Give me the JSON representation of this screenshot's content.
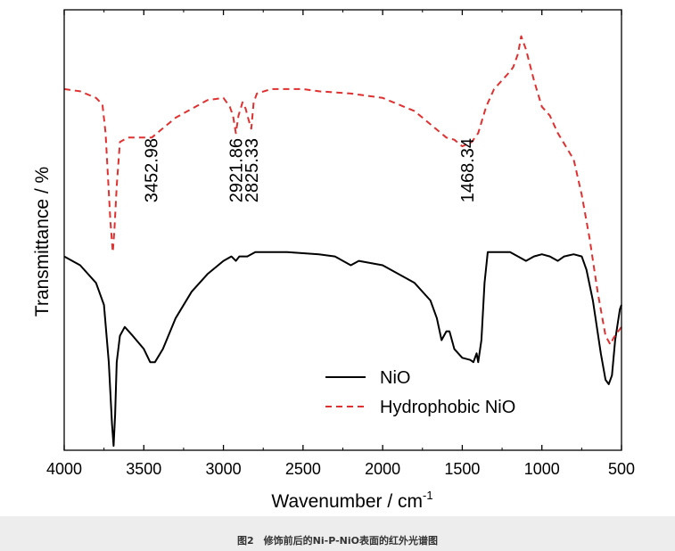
{
  "chart_data": {
    "type": "line",
    "title": "",
    "xlabel": "Wavenumber  / cm",
    "xlabel_superscript": "-1",
    "ylabel": "Transmittance / %",
    "xlim": [
      4000,
      500
    ],
    "x_reversed": true,
    "ylim": [
      0,
      100
    ],
    "yticks_visible": false,
    "grid": false,
    "legend_position": "bottom-right",
    "xticks": [
      {
        "value": 4000,
        "label": "4000"
      },
      {
        "value": 3500,
        "label": "3500"
      },
      {
        "value": 3000,
        "label": "3000"
      },
      {
        "value": 2500,
        "label": "2500"
      },
      {
        "value": 2000,
        "label": "2000"
      },
      {
        "value": 1500,
        "label": "1500"
      },
      {
        "value": 1000,
        "label": "1000"
      },
      {
        "value": 500,
        "label": "500"
      }
    ],
    "series": [
      {
        "name": "NiO",
        "color": "#000000",
        "style": "solid",
        "points": [
          [
            4000,
            44
          ],
          [
            3900,
            42
          ],
          [
            3800,
            38
          ],
          [
            3750,
            33
          ],
          [
            3720,
            20
          ],
          [
            3700,
            6
          ],
          [
            3690,
            1
          ],
          [
            3680,
            8
          ],
          [
            3670,
            20
          ],
          [
            3650,
            26
          ],
          [
            3620,
            28
          ],
          [
            3570,
            26
          ],
          [
            3500,
            23
          ],
          [
            3460,
            20
          ],
          [
            3430,
            20
          ],
          [
            3380,
            23
          ],
          [
            3300,
            30
          ],
          [
            3200,
            36
          ],
          [
            3100,
            40
          ],
          [
            3000,
            43
          ],
          [
            2950,
            44
          ],
          [
            2922,
            43
          ],
          [
            2900,
            44
          ],
          [
            2850,
            44
          ],
          [
            2800,
            45
          ],
          [
            2600,
            45
          ],
          [
            2400,
            44.5
          ],
          [
            2300,
            44
          ],
          [
            2200,
            42
          ],
          [
            2150,
            43
          ],
          [
            2000,
            42
          ],
          [
            1900,
            40
          ],
          [
            1800,
            38
          ],
          [
            1700,
            34
          ],
          [
            1660,
            30
          ],
          [
            1630,
            25
          ],
          [
            1600,
            27
          ],
          [
            1580,
            27
          ],
          [
            1550,
            23
          ],
          [
            1500,
            21
          ],
          [
            1450,
            20.5
          ],
          [
            1430,
            20
          ],
          [
            1410,
            22
          ],
          [
            1400,
            20
          ],
          [
            1380,
            25
          ],
          [
            1360,
            38
          ],
          [
            1340,
            45
          ],
          [
            1300,
            45
          ],
          [
            1200,
            45
          ],
          [
            1150,
            44
          ],
          [
            1100,
            43
          ],
          [
            1050,
            44
          ],
          [
            1000,
            44.5
          ],
          [
            950,
            44
          ],
          [
            900,
            43
          ],
          [
            860,
            44
          ],
          [
            800,
            44.5
          ],
          [
            750,
            44
          ],
          [
            720,
            41
          ],
          [
            680,
            34
          ],
          [
            630,
            22
          ],
          [
            600,
            16
          ],
          [
            580,
            15
          ],
          [
            560,
            17
          ],
          [
            540,
            25
          ],
          [
            510,
            32
          ],
          [
            500,
            33
          ]
        ]
      },
      {
        "name": "Hydrophobic NiO",
        "color": "#e03030",
        "style": "dashed",
        "points": [
          [
            4000,
            82
          ],
          [
            3900,
            81.5
          ],
          [
            3800,
            80
          ],
          [
            3760,
            78.5
          ],
          [
            3740,
            72
          ],
          [
            3710,
            52
          ],
          [
            3695,
            45
          ],
          [
            3685,
            50
          ],
          [
            3670,
            60
          ],
          [
            3650,
            70
          ],
          [
            3600,
            71
          ],
          [
            3450,
            71
          ],
          [
            3400,
            72.5
          ],
          [
            3300,
            75.5
          ],
          [
            3200,
            77.5
          ],
          [
            3100,
            79.5
          ],
          [
            3000,
            80
          ],
          [
            2960,
            78
          ],
          [
            2940,
            76
          ],
          [
            2922,
            72
          ],
          [
            2905,
            76
          ],
          [
            2880,
            79
          ],
          [
            2860,
            77.5
          ],
          [
            2850,
            76
          ],
          [
            2825,
            73
          ],
          [
            2810,
            79
          ],
          [
            2790,
            81
          ],
          [
            2700,
            82
          ],
          [
            2500,
            82
          ],
          [
            2400,
            81.5
          ],
          [
            2200,
            81
          ],
          [
            2000,
            80
          ],
          [
            1800,
            77
          ],
          [
            1700,
            74
          ],
          [
            1600,
            71
          ],
          [
            1550,
            70.5
          ],
          [
            1500,
            69
          ],
          [
            1468,
            69.5
          ],
          [
            1440,
            70
          ],
          [
            1400,
            72
          ],
          [
            1350,
            78
          ],
          [
            1300,
            82
          ],
          [
            1250,
            84
          ],
          [
            1200,
            86
          ],
          [
            1180,
            87
          ],
          [
            1150,
            90
          ],
          [
            1130,
            94
          ],
          [
            1120,
            93
          ],
          [
            1100,
            91
          ],
          [
            1050,
            84
          ],
          [
            1000,
            78
          ],
          [
            950,
            76
          ],
          [
            900,
            72
          ],
          [
            850,
            69
          ],
          [
            800,
            66
          ],
          [
            750,
            58
          ],
          [
            700,
            48
          ],
          [
            650,
            36
          ],
          [
            600,
            26
          ],
          [
            570,
            24
          ],
          [
            550,
            25.5
          ],
          [
            520,
            27
          ],
          [
            500,
            28
          ]
        ]
      }
    ],
    "annotations": [
      {
        "text": "3452.98",
        "x": 3452.98,
        "rotation": -90
      },
      {
        "text": "2921.86",
        "x": 2921.86,
        "rotation": -90
      },
      {
        "text": "2825.33",
        "x": 2825.33,
        "rotation": -90
      },
      {
        "text": "1468.34",
        "x": 1468.34,
        "rotation": -90
      }
    ]
  },
  "caption": "图2　修饰前后的Ni-P-NiO表面的红外光谱图"
}
